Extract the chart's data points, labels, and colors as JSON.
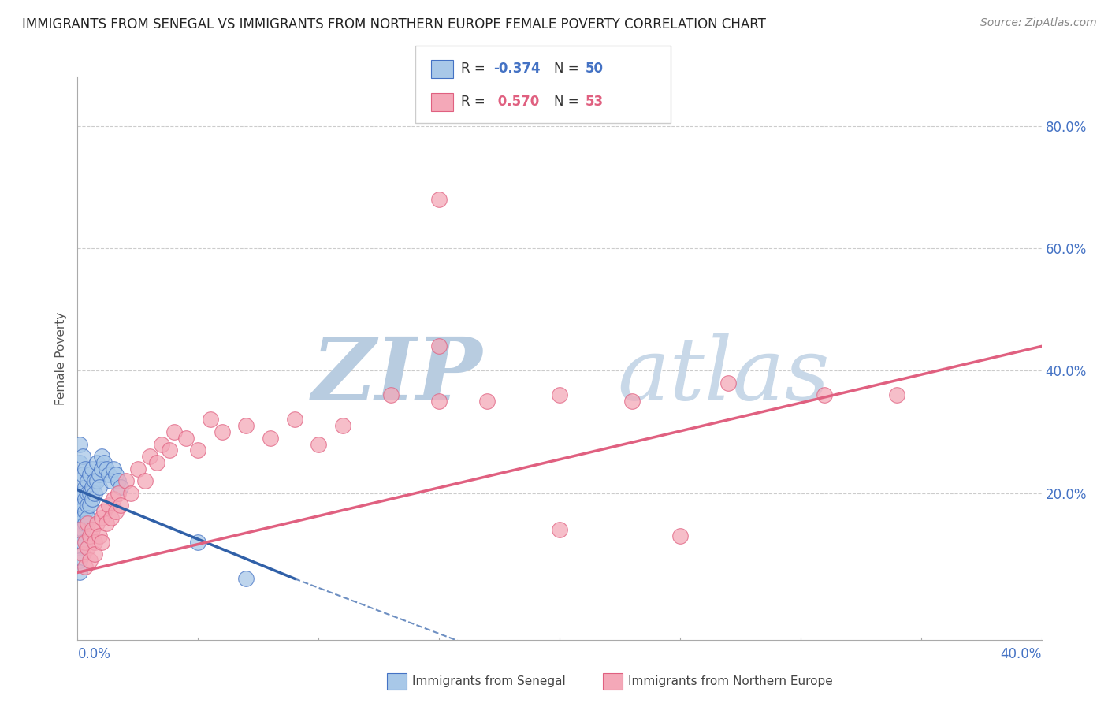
{
  "title": "IMMIGRANTS FROM SENEGAL VS IMMIGRANTS FROM NORTHERN EUROPE FEMALE POVERTY CORRELATION CHART",
  "source": "Source: ZipAtlas.com",
  "ylabel": "Female Poverty",
  "y_tick_labels": [
    "80.0%",
    "60.0%",
    "40.0%",
    "20.0%"
  ],
  "y_tick_positions": [
    0.8,
    0.6,
    0.4,
    0.2
  ],
  "xlim": [
    0.0,
    0.4
  ],
  "ylim": [
    -0.04,
    0.88
  ],
  "legend_r1": "R = -0.374",
  "legend_n1": "N = 50",
  "legend_r2": "R =  0.570",
  "legend_n2": "N = 53",
  "color_blue": "#A8C8E8",
  "color_pink": "#F4A8B8",
  "color_blue_dark": "#4472C4",
  "color_pink_dark": "#E06080",
  "color_blue_line": "#3060A8",
  "color_pink_line": "#E06080",
  "watermark_zip_color": "#B8CCE0",
  "watermark_atlas_color": "#C8D8E8",
  "background_color": "#FFFFFF",
  "senegal_points": [
    [
      0.001,
      0.28
    ],
    [
      0.001,
      0.25
    ],
    [
      0.001,
      0.22
    ],
    [
      0.001,
      0.19
    ],
    [
      0.001,
      0.17
    ],
    [
      0.001,
      0.15
    ],
    [
      0.001,
      0.13
    ],
    [
      0.001,
      0.11
    ],
    [
      0.001,
      0.09
    ],
    [
      0.001,
      0.07
    ],
    [
      0.002,
      0.26
    ],
    [
      0.002,
      0.23
    ],
    [
      0.002,
      0.2
    ],
    [
      0.002,
      0.18
    ],
    [
      0.002,
      0.16
    ],
    [
      0.002,
      0.14
    ],
    [
      0.002,
      0.12
    ],
    [
      0.003,
      0.24
    ],
    [
      0.003,
      0.21
    ],
    [
      0.003,
      0.19
    ],
    [
      0.003,
      0.17
    ],
    [
      0.003,
      0.15
    ],
    [
      0.004,
      0.22
    ],
    [
      0.004,
      0.2
    ],
    [
      0.004,
      0.18
    ],
    [
      0.004,
      0.16
    ],
    [
      0.005,
      0.23
    ],
    [
      0.005,
      0.2
    ],
    [
      0.005,
      0.18
    ],
    [
      0.006,
      0.24
    ],
    [
      0.006,
      0.21
    ],
    [
      0.006,
      0.19
    ],
    [
      0.007,
      0.22
    ],
    [
      0.007,
      0.2
    ],
    [
      0.008,
      0.25
    ],
    [
      0.008,
      0.22
    ],
    [
      0.009,
      0.23
    ],
    [
      0.009,
      0.21
    ],
    [
      0.01,
      0.26
    ],
    [
      0.01,
      0.24
    ],
    [
      0.011,
      0.25
    ],
    [
      0.012,
      0.24
    ],
    [
      0.013,
      0.23
    ],
    [
      0.014,
      0.22
    ],
    [
      0.015,
      0.24
    ],
    [
      0.016,
      0.23
    ],
    [
      0.017,
      0.22
    ],
    [
      0.018,
      0.21
    ],
    [
      0.05,
      0.12
    ],
    [
      0.07,
      0.06
    ]
  ],
  "northern_europe_points": [
    [
      0.001,
      0.14
    ],
    [
      0.002,
      0.1
    ],
    [
      0.003,
      0.08
    ],
    [
      0.003,
      0.12
    ],
    [
      0.004,
      0.11
    ],
    [
      0.004,
      0.15
    ],
    [
      0.005,
      0.13
    ],
    [
      0.005,
      0.09
    ],
    [
      0.006,
      0.14
    ],
    [
      0.007,
      0.12
    ],
    [
      0.007,
      0.1
    ],
    [
      0.008,
      0.15
    ],
    [
      0.009,
      0.13
    ],
    [
      0.01,
      0.16
    ],
    [
      0.01,
      0.12
    ],
    [
      0.011,
      0.17
    ],
    [
      0.012,
      0.15
    ],
    [
      0.013,
      0.18
    ],
    [
      0.014,
      0.16
    ],
    [
      0.015,
      0.19
    ],
    [
      0.016,
      0.17
    ],
    [
      0.017,
      0.2
    ],
    [
      0.018,
      0.18
    ],
    [
      0.02,
      0.22
    ],
    [
      0.022,
      0.2
    ],
    [
      0.025,
      0.24
    ],
    [
      0.028,
      0.22
    ],
    [
      0.03,
      0.26
    ],
    [
      0.033,
      0.25
    ],
    [
      0.035,
      0.28
    ],
    [
      0.038,
      0.27
    ],
    [
      0.04,
      0.3
    ],
    [
      0.045,
      0.29
    ],
    [
      0.05,
      0.27
    ],
    [
      0.055,
      0.32
    ],
    [
      0.06,
      0.3
    ],
    [
      0.07,
      0.31
    ],
    [
      0.08,
      0.29
    ],
    [
      0.09,
      0.32
    ],
    [
      0.1,
      0.28
    ],
    [
      0.11,
      0.31
    ],
    [
      0.13,
      0.36
    ],
    [
      0.15,
      0.35
    ],
    [
      0.17,
      0.35
    ],
    [
      0.15,
      0.44
    ],
    [
      0.2,
      0.36
    ],
    [
      0.23,
      0.35
    ],
    [
      0.27,
      0.38
    ],
    [
      0.31,
      0.36
    ],
    [
      0.34,
      0.36
    ],
    [
      0.15,
      0.68
    ],
    [
      0.2,
      0.14
    ],
    [
      0.25,
      0.13
    ]
  ],
  "senegal_line": {
    "x0": 0.0,
    "y0": 0.205,
    "x1": 0.09,
    "y1": 0.06
  },
  "senegal_dashed_line": {
    "x0": 0.09,
    "y0": 0.06,
    "x1": 0.16,
    "y1": -0.045
  },
  "northern_europe_line": {
    "x0": 0.0,
    "y0": 0.07,
    "x1": 0.4,
    "y1": 0.44
  }
}
